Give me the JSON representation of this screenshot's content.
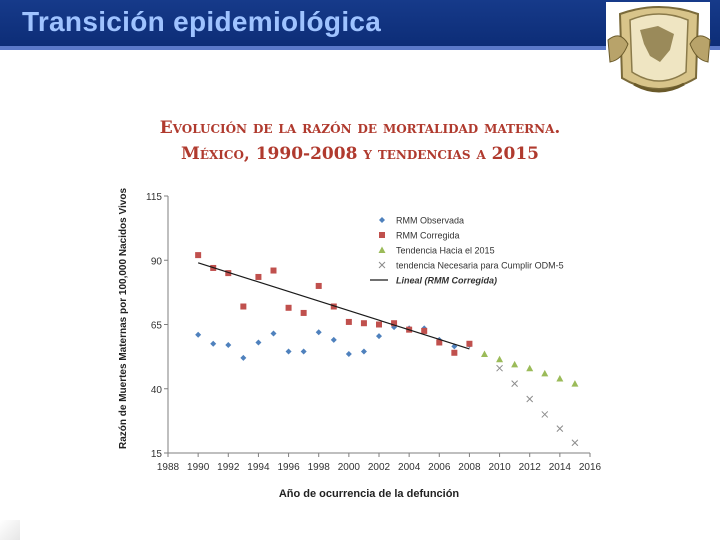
{
  "header": {
    "title": "Transición epidemiológica"
  },
  "colors": {
    "header_bg": "#163a8a",
    "title_text": "#9fc3ff",
    "chart_title": "#b03a2e",
    "observed": "#4f81bd",
    "corrected": "#c0504d",
    "trend": "#9bbb59",
    "needed": "#8c8c8c"
  },
  "chart_data": {
    "type": "scatter",
    "title": "Evolución de la razón de mortalidad materna.",
    "subtitle": "México, 1990-2008 y tendencias a 2015",
    "xlabel": "Año de ocurrencia de la defunción",
    "ylabel": "Razón de Muertes Maternas por 100,000 Nacidos Vivos",
    "xlim": [
      1988,
      2016
    ],
    "ylim": [
      15,
      115
    ],
    "xticks": [
      "1988",
      "1990",
      "1992",
      "1994",
      "1996",
      "1998",
      "2000",
      "2002",
      "2004",
      "2006",
      "2008",
      "2010",
      "2012",
      "2014",
      "2016"
    ],
    "yticks": [
      "115",
      "90",
      "65",
      "40",
      "15"
    ],
    "series": [
      {
        "name": "RMM Observada",
        "marker": "diamond",
        "x": [
          1990,
          1991,
          1992,
          1993,
          1994,
          1995,
          1996,
          1997,
          1998,
          1999,
          2000,
          2001,
          2002,
          2003,
          2004,
          2005,
          2006,
          2007,
          2008
        ],
        "y": [
          61.0,
          57.5,
          57.0,
          52.0,
          58.0,
          61.5,
          54.5,
          54.5,
          62.0,
          59.0,
          53.5,
          54.5,
          60.5,
          64.0,
          63.5,
          63.5,
          59.0,
          56.5,
          57.0
        ]
      },
      {
        "name": "RMM Corregida",
        "marker": "square",
        "x": [
          1990,
          1991,
          1992,
          1993,
          1994,
          1995,
          1996,
          1997,
          1998,
          1999,
          2000,
          2001,
          2002,
          2003,
          2004,
          2005,
          2006,
          2007,
          2008
        ],
        "y": [
          92.0,
          87.0,
          85.0,
          72.0,
          83.5,
          86.0,
          71.5,
          69.5,
          80.0,
          72.0,
          66.0,
          65.5,
          65.0,
          65.5,
          63.0,
          62.5,
          58.0,
          54.0,
          57.5
        ]
      },
      {
        "name": "Tendencia Hacia el 2015",
        "marker": "triangle",
        "x": [
          2009,
          2010,
          2011,
          2012,
          2013,
          2014,
          2015
        ],
        "y": [
          53.5,
          51.5,
          49.5,
          48.0,
          46.0,
          44.0,
          42.0
        ]
      },
      {
        "name": "tendencia Necesaria para Cumplir ODM-5",
        "marker": "x",
        "x": [
          2010,
          2011,
          2012,
          2013,
          2014,
          2015
        ],
        "y": [
          48.0,
          42.0,
          36.0,
          30.0,
          24.5,
          19.0
        ]
      },
      {
        "name": "Lineal (RMM Corregida)",
        "marker": "line",
        "x": [
          1990,
          2008
        ],
        "y": [
          89.0,
          55.5
        ]
      }
    ]
  }
}
